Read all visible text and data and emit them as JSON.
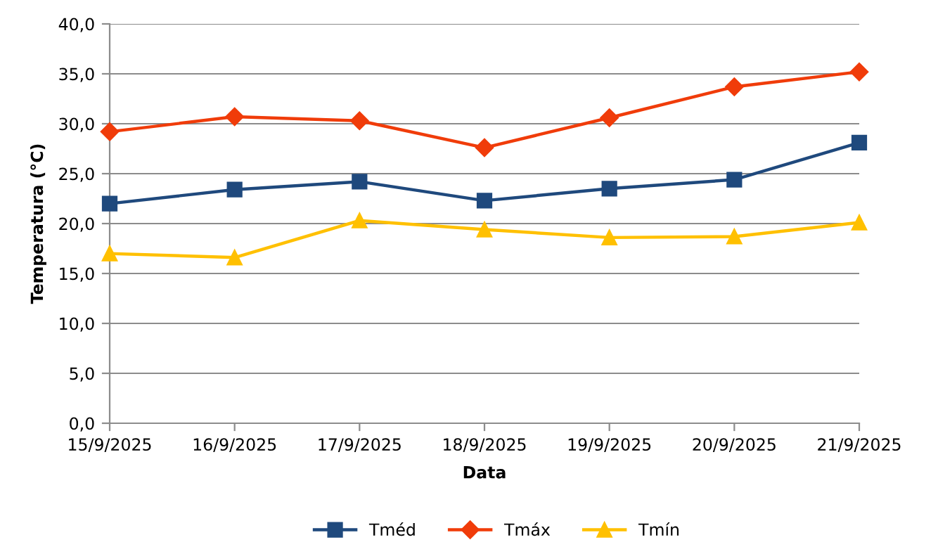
{
  "chart_data": {
    "type": "line",
    "xlabel": "Data",
    "ylabel": "Temperatura (°C)",
    "categories": [
      "15/9/2025",
      "16/9/2025",
      "17/9/2025",
      "18/9/2025",
      "19/9/2025",
      "20/9/2025",
      "21/9/2025"
    ],
    "series": [
      {
        "name": "Tméd",
        "color": "#1f497d",
        "marker": "square",
        "values": [
          22.0,
          23.4,
          24.2,
          22.3,
          23.5,
          24.4,
          28.1
        ]
      },
      {
        "name": "Tmáx",
        "color": "#f03c0a",
        "marker": "diamond",
        "values": [
          29.2,
          30.7,
          30.3,
          27.6,
          30.6,
          33.7,
          35.2
        ]
      },
      {
        "name": "Tmín",
        "color": "#ffc000",
        "marker": "triangle",
        "values": [
          17.0,
          16.6,
          20.3,
          19.4,
          18.6,
          18.7,
          20.1
        ]
      }
    ],
    "ylim": [
      0,
      40
    ],
    "yticks": [
      {
        "value": 0,
        "label": "0,0"
      },
      {
        "value": 5,
        "label": "5,0"
      },
      {
        "value": 10,
        "label": "10,0"
      },
      {
        "value": 15,
        "label": "15,0"
      },
      {
        "value": 20,
        "label": "20,0"
      },
      {
        "value": 25,
        "label": "25,0"
      },
      {
        "value": 30,
        "label": "30,0"
      },
      {
        "value": 35,
        "label": "35,0"
      },
      {
        "value": 40,
        "label": "40,0"
      }
    ],
    "grid": "y",
    "legend": "bottom",
    "line_style": "solid"
  }
}
